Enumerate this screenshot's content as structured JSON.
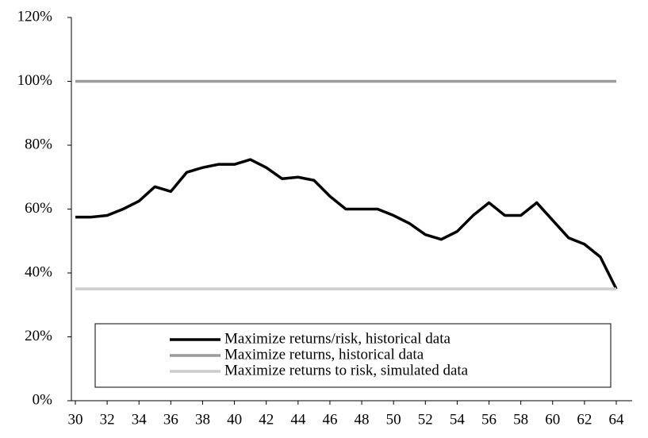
{
  "chart_data": {
    "type": "line",
    "x": [
      30,
      31,
      32,
      33,
      34,
      35,
      36,
      37,
      38,
      39,
      40,
      41,
      42,
      43,
      44,
      45,
      46,
      47,
      48,
      49,
      50,
      51,
      52,
      53,
      54,
      55,
      56,
      57,
      58,
      59,
      60,
      61,
      62,
      63,
      64
    ],
    "series": [
      {
        "name": "Maximize returns/risk, historical data",
        "color": "#000000",
        "values": [
          57.5,
          57.5,
          58,
          60,
          62.5,
          67,
          65.5,
          71.5,
          73,
          74,
          74,
          75.5,
          73,
          69.5,
          70,
          69,
          64,
          60,
          60,
          60,
          58,
          55.5,
          52,
          50.5,
          53,
          58,
          62,
          58,
          58,
          62,
          56.5,
          51,
          49,
          45,
          35
        ]
      },
      {
        "name": "Maximize returns, historical data",
        "color": "#999999",
        "values": [
          100,
          100,
          100,
          100,
          100,
          100,
          100,
          100,
          100,
          100,
          100,
          100,
          100,
          100,
          100,
          100,
          100,
          100,
          100,
          100,
          100,
          100,
          100,
          100,
          100,
          100,
          100,
          100,
          100,
          100,
          100,
          100,
          100,
          100,
          100
        ]
      },
      {
        "name": "Maximize returns to risk, simulated data",
        "color": "#cccccc",
        "values": [
          35,
          35,
          35,
          35,
          35,
          35,
          35,
          35,
          35,
          35,
          35,
          35,
          35,
          35,
          35,
          35,
          35,
          35,
          35,
          35,
          35,
          35,
          35,
          35,
          35,
          35,
          35,
          35,
          35,
          35,
          35,
          35,
          35,
          35,
          35
        ]
      }
    ],
    "xlim": [
      30,
      64
    ],
    "xticks": [
      30,
      32,
      34,
      36,
      38,
      40,
      42,
      44,
      46,
      48,
      50,
      52,
      54,
      56,
      58,
      60,
      62,
      64
    ],
    "ylim": [
      0,
      120
    ],
    "yticks": [
      {
        "value": 0,
        "label": "0%"
      },
      {
        "value": 20,
        "label": "20%"
      },
      {
        "value": 40,
        "label": "40%"
      },
      {
        "value": 60,
        "label": "60%"
      },
      {
        "value": 80,
        "label": "80%"
      },
      {
        "value": 100,
        "label": "100%"
      },
      {
        "value": 120,
        "label": "120%"
      }
    ]
  }
}
